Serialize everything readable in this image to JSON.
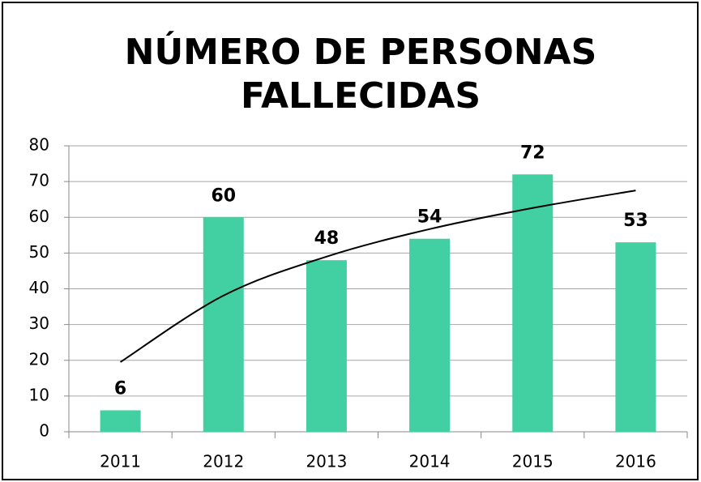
{
  "chart_data": {
    "type": "bar",
    "title": "NÚMERO DE PERSONAS FALLECIDAS",
    "categories": [
      "2011",
      "2012",
      "2013",
      "2014",
      "2015",
      "2016"
    ],
    "values": [
      6,
      60,
      48,
      54,
      72,
      53
    ],
    "color": "#42cfa2",
    "ylim": [
      0,
      80
    ],
    "yticks": [
      0,
      10,
      20,
      30,
      40,
      50,
      60,
      70,
      80
    ],
    "grid": true,
    "trendline": {
      "color": "#000000",
      "values": [
        19.5,
        38.1,
        49,
        56.7,
        62.6,
        67.5
      ]
    }
  }
}
